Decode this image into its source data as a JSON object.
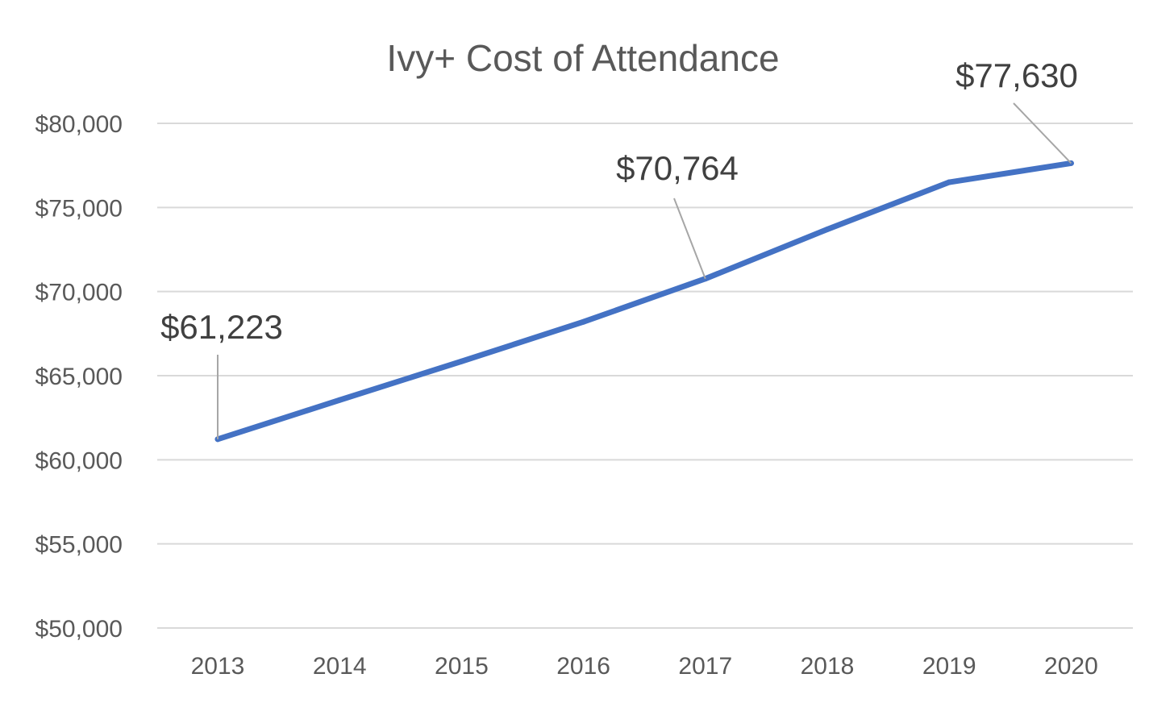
{
  "chart_data": {
    "type": "line",
    "title": "Ivy+ Cost of Attendance",
    "xlabel": "",
    "ylabel": "",
    "categories": [
      "2013",
      "2014",
      "2015",
      "2016",
      "2017",
      "2018",
      "2019",
      "2020"
    ],
    "series": [
      {
        "values": [
          61223,
          63550,
          65850,
          68200,
          70764,
          73700,
          76500,
          77630
        ],
        "color": "#4472c4"
      }
    ],
    "ylim": [
      50000,
      80000
    ],
    "yticks": [
      80000,
      75000,
      70000,
      65000,
      60000,
      55000,
      50000
    ],
    "ytick_labels": [
      "$80,000",
      "$75,000",
      "$70,000",
      "$65,000",
      "$60,000",
      "$55,000",
      "$50,000"
    ],
    "data_labels": [
      {
        "category": "2013",
        "text": "$61,223"
      },
      {
        "category": "2017",
        "text": "$70,764"
      },
      {
        "category": "2020",
        "text": "$77,630"
      }
    ],
    "grid": true,
    "legend": "none"
  }
}
